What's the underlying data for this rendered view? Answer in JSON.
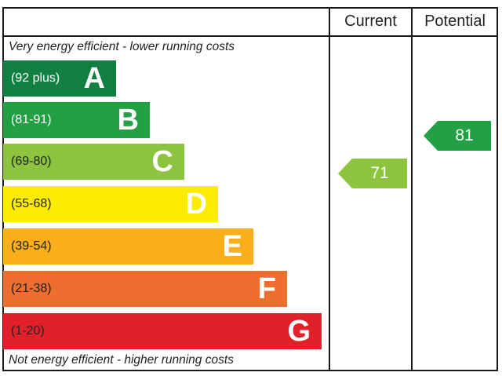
{
  "header": {
    "current_label": "Current",
    "potential_label": "Potential"
  },
  "captions": {
    "top": "Very energy efficient - lower running costs",
    "bottom": "Not energy efficient - higher running costs"
  },
  "chart_data": {
    "type": "bar",
    "bands": [
      {
        "letter": "A",
        "range": "(92 plus)",
        "color": "#108040",
        "range_text_color": "#ffffff"
      },
      {
        "letter": "B",
        "range": "(81-91)",
        "color": "#22a043",
        "range_text_color": "#ffffff"
      },
      {
        "letter": "C",
        "range": "(69-80)",
        "color": "#8cc43f",
        "range_text_color": "#222222"
      },
      {
        "letter": "D",
        "range": "(55-68)",
        "color": "#fcec00",
        "range_text_color": "#222222"
      },
      {
        "letter": "E",
        "range": "(39-54)",
        "color": "#f9ae1a",
        "range_text_color": "#222222"
      },
      {
        "letter": "F",
        "range": "(21-38)",
        "color": "#ed6e2e",
        "range_text_color": "#222222"
      },
      {
        "letter": "G",
        "range": "(1-20)",
        "color": "#e2202a",
        "range_text_color": "#222222"
      }
    ],
    "current": {
      "value": "71",
      "band": "C",
      "color": "#8cc43f"
    },
    "potential": {
      "value": "81",
      "band": "B",
      "color": "#22a043"
    }
  }
}
